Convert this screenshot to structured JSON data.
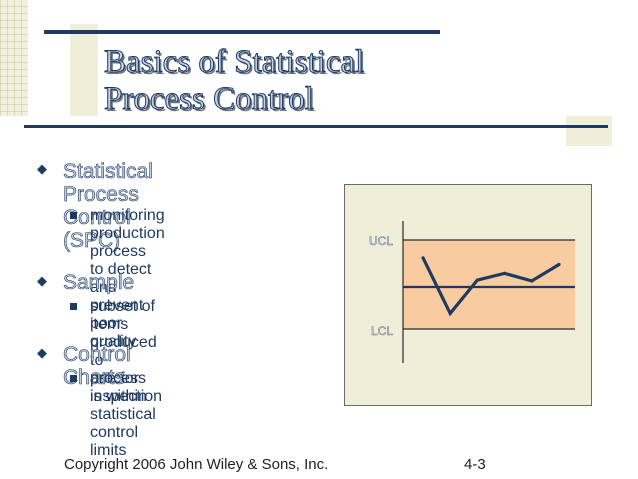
{
  "title": {
    "line1": "Basics of Statistical",
    "line2": "Process Control"
  },
  "bullets": [
    {
      "lines": [
        "Statistical Process Control",
        "(SPC)"
      ],
      "sub": {
        "lines": [
          "monitoring production process",
          "to detect and prevent poor",
          "quality"
        ]
      }
    },
    {
      "lines": [
        "Sample"
      ],
      "sub": {
        "lines": [
          "subset of items produced to",
          "use for inspection"
        ]
      }
    },
    {
      "lines": [
        "Control Charts"
      ],
      "sub": {
        "lines": [
          "process is within statistical",
          "control limits"
        ]
      }
    }
  ],
  "chart": {
    "ucl_label": "UCL",
    "lcl_label": "LCL",
    "colors": {
      "band": "#f9cba0",
      "line": "#1f3a60",
      "limit": "#2a2a2a"
    }
  },
  "chart_data": {
    "type": "line",
    "title": "",
    "xlabel": "",
    "ylabel": "",
    "upper_limit": 1,
    "lower_limit": -1,
    "center": 0,
    "series": [
      {
        "values": [
          0.6,
          -0.65,
          0.1,
          0.25,
          0.08,
          0.45
        ]
      }
    ]
  },
  "footer": {
    "copyright": "Copyright 2006 John Wiley & Sons, Inc.",
    "page": "4-3"
  }
}
